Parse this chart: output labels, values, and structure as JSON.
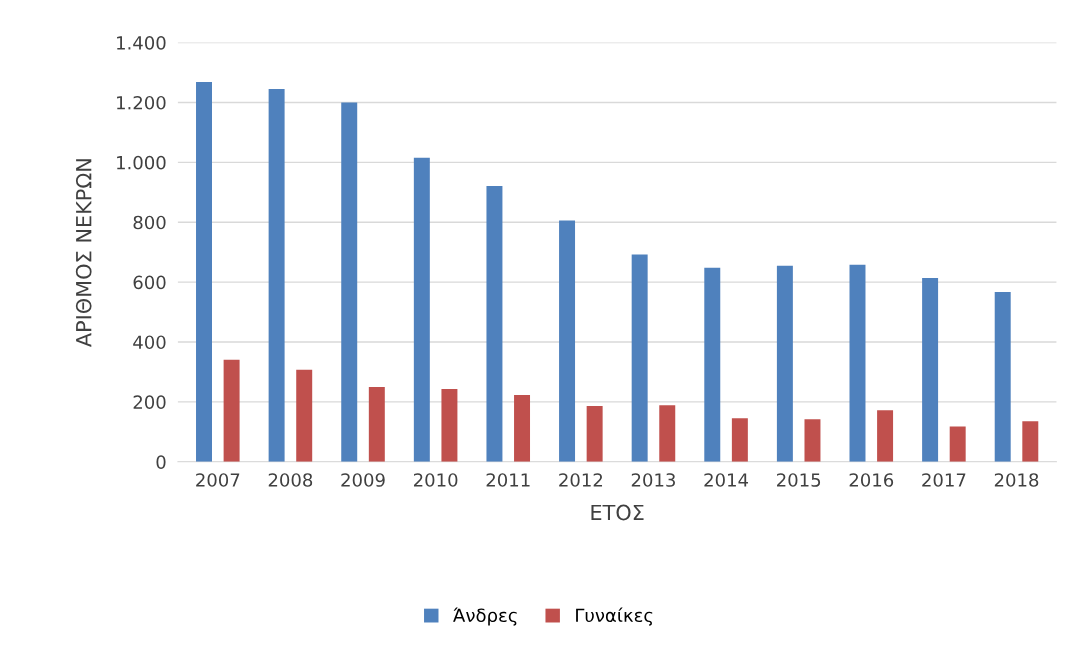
{
  "chart_data": {
    "type": "bar",
    "xlabel": "ΕΤΟΣ",
    "ylabel": "ΑΡΙΘΜΟΣ ΝΕΚΡΩΝ",
    "categories": [
      "2007",
      "2008",
      "2009",
      "2010",
      "2011",
      "2012",
      "2013",
      "2014",
      "2015",
      "2016",
      "2017",
      "2018"
    ],
    "series": [
      {
        "name": "Άνδρες",
        "color": "#4f81bd",
        "values": [
          1268,
          1245,
          1200,
          1015,
          921,
          806,
          692,
          648,
          655,
          658,
          614,
          567
        ]
      },
      {
        "name": "Γυναίκες",
        "color": "#c0504d",
        "values": [
          341,
          307,
          250,
          243,
          223,
          186,
          189,
          145,
          142,
          172,
          118,
          135
        ]
      }
    ],
    "ylim": [
      0,
      1400
    ],
    "yticks": [
      0,
      200,
      400,
      600,
      800,
      {
        "value": 1000,
        "label": "1.000"
      },
      {
        "value": 1200,
        "label": "1.200"
      },
      {
        "value": 1400,
        "label": "1.400"
      }
    ],
    "grid": "y",
    "legend": "bottom"
  }
}
